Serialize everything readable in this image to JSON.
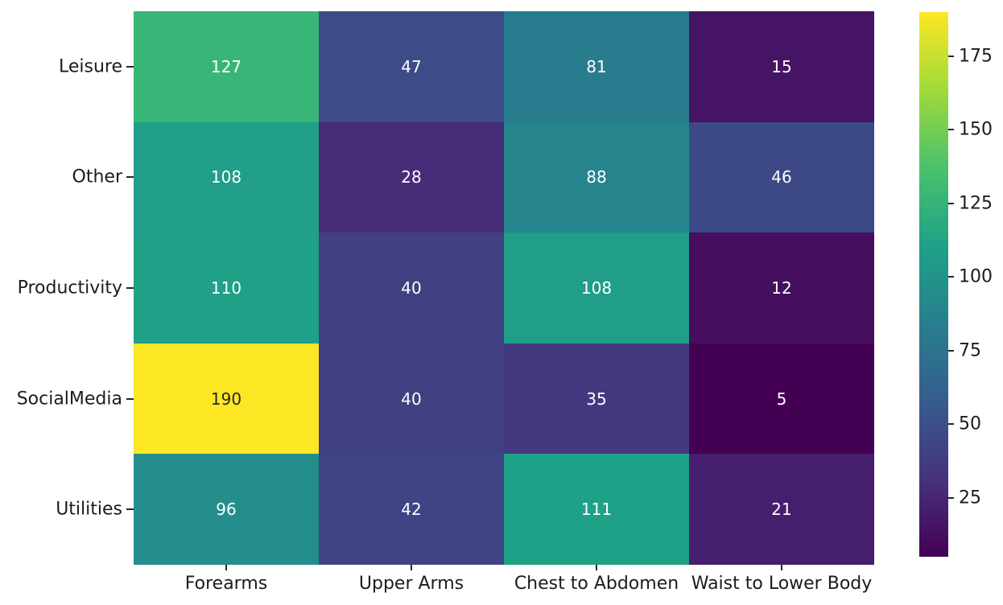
{
  "figure": {
    "background": "#ffffff",
    "label_color": "#1c1c1c",
    "tick_mark_color": "#262626"
  },
  "chart_data": {
    "type": "heatmap",
    "x_categories": [
      "Forearms",
      "Upper Arms",
      "Chest to Abdomen",
      "Waist to Lower Body"
    ],
    "y_categories": [
      "Leisure",
      "Other",
      "Productivity",
      "SocialMedia",
      "Utilities"
    ],
    "values": [
      [
        127,
        47,
        81,
        15
      ],
      [
        108,
        28,
        88,
        46
      ],
      [
        110,
        40,
        108,
        12
      ],
      [
        190,
        40,
        35,
        5
      ],
      [
        96,
        42,
        111,
        21
      ]
    ],
    "annotated": true,
    "vmin": 5,
    "vmax": 190,
    "colormap": "viridis",
    "colormap_stops": [
      "#440154",
      "#46327e",
      "#365c8d",
      "#277f8e",
      "#1fa187",
      "#4ac16d",
      "#a0da39",
      "#fde725"
    ],
    "colorbar_ticks": [
      175,
      150,
      125,
      100,
      75,
      50,
      25
    ],
    "colorbar_position": "right",
    "annotation_text_light": "#ffffff",
    "annotation_text_dark": "#262626",
    "grid": false
  }
}
